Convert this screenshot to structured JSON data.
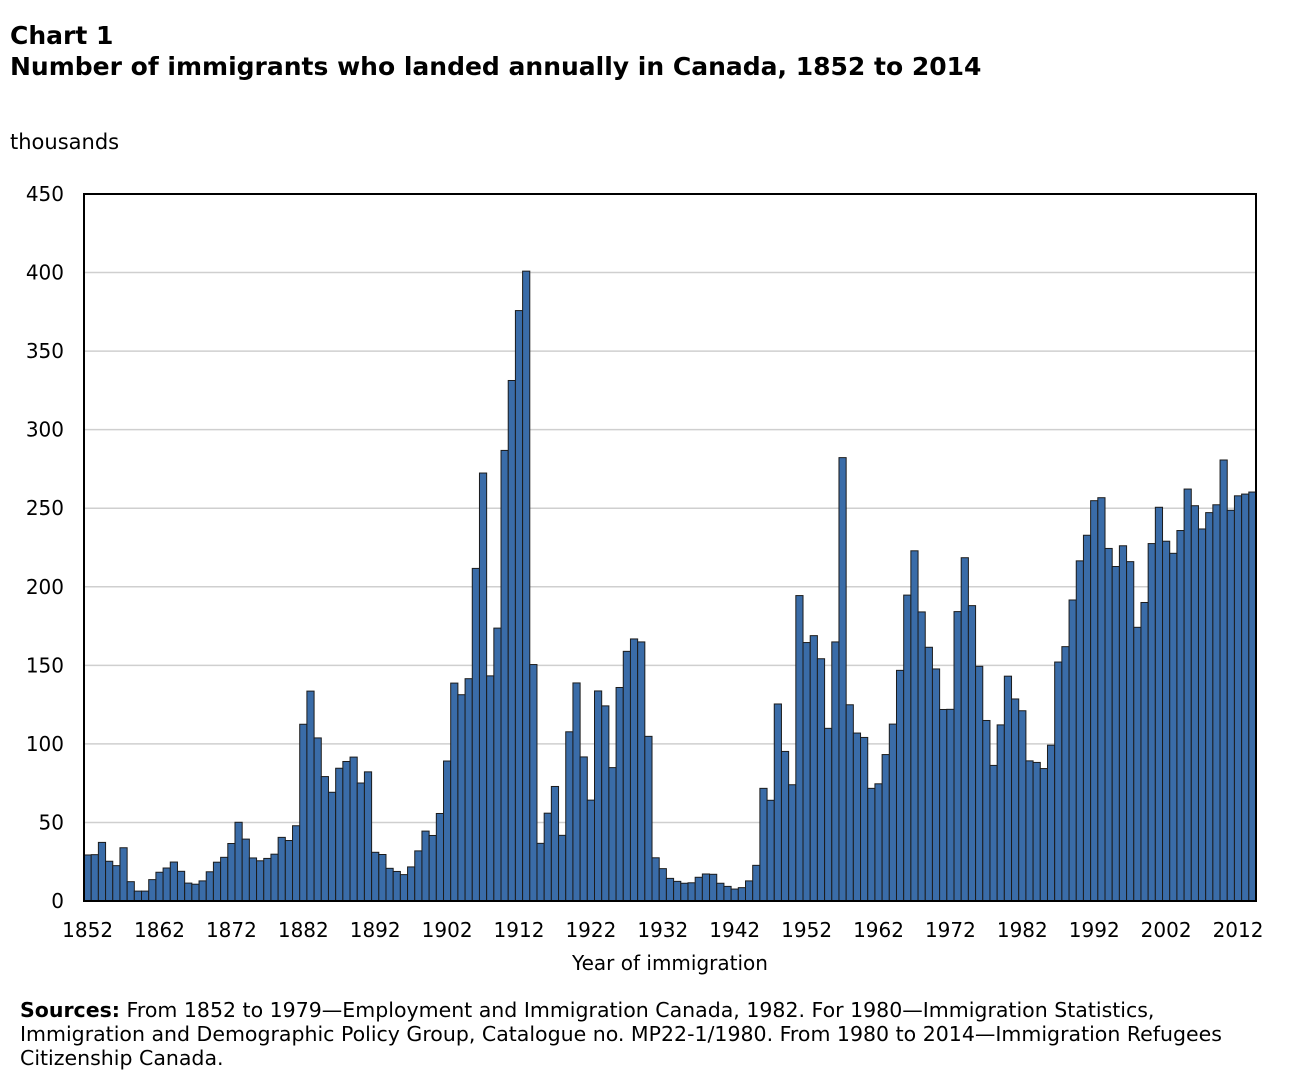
{
  "chart_data": {
    "type": "bar",
    "chart_label": "Chart 1",
    "title": "Number of immigrants who landed annually in Canada, 1852 to 2014",
    "ylabel": "thousands",
    "xlabel": "Year of immigration",
    "ylim": [
      0,
      450
    ],
    "grid": true,
    "y_ticks": [
      0,
      50,
      100,
      150,
      200,
      250,
      300,
      350,
      400,
      450
    ],
    "x_tick_labels": [
      "1852",
      "1862",
      "1872",
      "1882",
      "1892",
      "1902",
      "1912",
      "1922",
      "1932",
      "1942",
      "1952",
      "1962",
      "1972",
      "1982",
      "1992",
      "2002",
      "2012"
    ],
    "x": [
      1852,
      1853,
      1854,
      1855,
      1856,
      1857,
      1858,
      1859,
      1860,
      1861,
      1862,
      1863,
      1864,
      1865,
      1866,
      1867,
      1868,
      1869,
      1870,
      1871,
      1872,
      1873,
      1874,
      1875,
      1876,
      1877,
      1878,
      1879,
      1880,
      1881,
      1882,
      1883,
      1884,
      1885,
      1886,
      1887,
      1888,
      1889,
      1890,
      1891,
      1892,
      1893,
      1894,
      1895,
      1896,
      1897,
      1898,
      1899,
      1900,
      1901,
      1902,
      1903,
      1904,
      1905,
      1906,
      1907,
      1908,
      1909,
      1910,
      1911,
      1912,
      1913,
      1914,
      1915,
      1916,
      1917,
      1918,
      1919,
      1920,
      1921,
      1922,
      1923,
      1924,
      1925,
      1926,
      1927,
      1928,
      1929,
      1930,
      1931,
      1932,
      1933,
      1934,
      1935,
      1936,
      1937,
      1938,
      1939,
      1940,
      1941,
      1942,
      1943,
      1944,
      1945,
      1946,
      1947,
      1948,
      1949,
      1950,
      1951,
      1952,
      1953,
      1954,
      1955,
      1956,
      1957,
      1958,
      1959,
      1960,
      1961,
      1962,
      1963,
      1964,
      1965,
      1966,
      1967,
      1968,
      1969,
      1970,
      1971,
      1972,
      1973,
      1974,
      1975,
      1976,
      1977,
      1978,
      1979,
      1980,
      1981,
      1982,
      1983,
      1984,
      1985,
      1986,
      1987,
      1988,
      1989,
      1990,
      1991,
      1992,
      1993,
      1994,
      1995,
      1996,
      1997,
      1998,
      1999,
      2000,
      2001,
      2002,
      2003,
      2004,
      2005,
      2006,
      2007,
      2008,
      2009,
      2010,
      2011,
      2012,
      2013,
      2014
    ],
    "values": [
      29.3,
      29.5,
      37.3,
      25.3,
      22.5,
      33.9,
      12.3,
      6.3,
      6.3,
      13.6,
      18.3,
      21.0,
      24.8,
      18.9,
      11.4,
      10.7,
      12.8,
      18.6,
      24.7,
      27.8,
      36.6,
      50.1,
      39.4,
      27.4,
      25.6,
      27.1,
      29.8,
      40.5,
      38.5,
      47.9,
      112.5,
      133.6,
      103.8,
      79.2,
      69.2,
      84.5,
      88.8,
      91.6,
      75.1,
      82.2,
      31.0,
      29.6,
      20.8,
      18.8,
      16.8,
      21.7,
      31.9,
      44.5,
      41.7,
      55.7,
      89.1,
      138.7,
      131.3,
      141.5,
      211.7,
      272.4,
      143.3,
      173.7,
      286.8,
      331.3,
      375.8,
      400.9,
      150.5,
      36.7,
      55.9,
      72.9,
      41.8,
      107.7,
      138.8,
      91.7,
      64.2,
      133.7,
      124.2,
      84.9,
      135.9,
      158.9,
      166.8,
      164.9,
      104.8,
      27.5,
      20.6,
      14.4,
      12.5,
      11.3,
      11.6,
      15.1,
      17.2,
      17.0,
      11.3,
      9.3,
      7.6,
      8.5,
      12.8,
      22.7,
      71.7,
      64.1,
      125.4,
      95.2,
      74.0,
      194.4,
      164.5,
      168.9,
      154.2,
      109.9,
      164.9,
      282.2,
      124.9,
      106.9,
      104.1,
      71.7,
      74.6,
      93.2,
      112.6,
      146.8,
      194.7,
      222.9,
      184.0,
      161.5,
      147.7,
      121.9,
      122.0,
      184.2,
      218.5,
      188.0,
      149.4,
      114.9,
      86.3,
      112.1,
      143.1,
      128.6,
      121.1,
      89.2,
      88.2,
      84.3,
      99.2,
      152.1,
      161.9,
      191.6,
      216.5,
      232.8,
      254.8,
      256.7,
      224.4,
      212.9,
      226.1,
      216.0,
      174.2,
      190.0,
      227.5,
      250.6,
      229.0,
      221.3,
      235.8,
      262.2,
      251.6,
      236.8,
      247.2,
      252.2,
      280.7,
      248.7,
      257.9,
      259.0,
      260.3
    ]
  },
  "colors": {
    "bar": "#3a6ca8",
    "bar_outline": "#1c1c1c",
    "grid": "#cfcfcf",
    "frame": "#000000"
  },
  "sources": {
    "label": "Sources:",
    "text": "From 1852 to 1979—Employment and Immigration Canada, 1982. For 1980—Immigration Statistics, Immigration and Demographic Policy Group, Catalogue no. MP22-1/1980. From 1980 to 2014—Immigration Refugees Citizenship Canada."
  }
}
